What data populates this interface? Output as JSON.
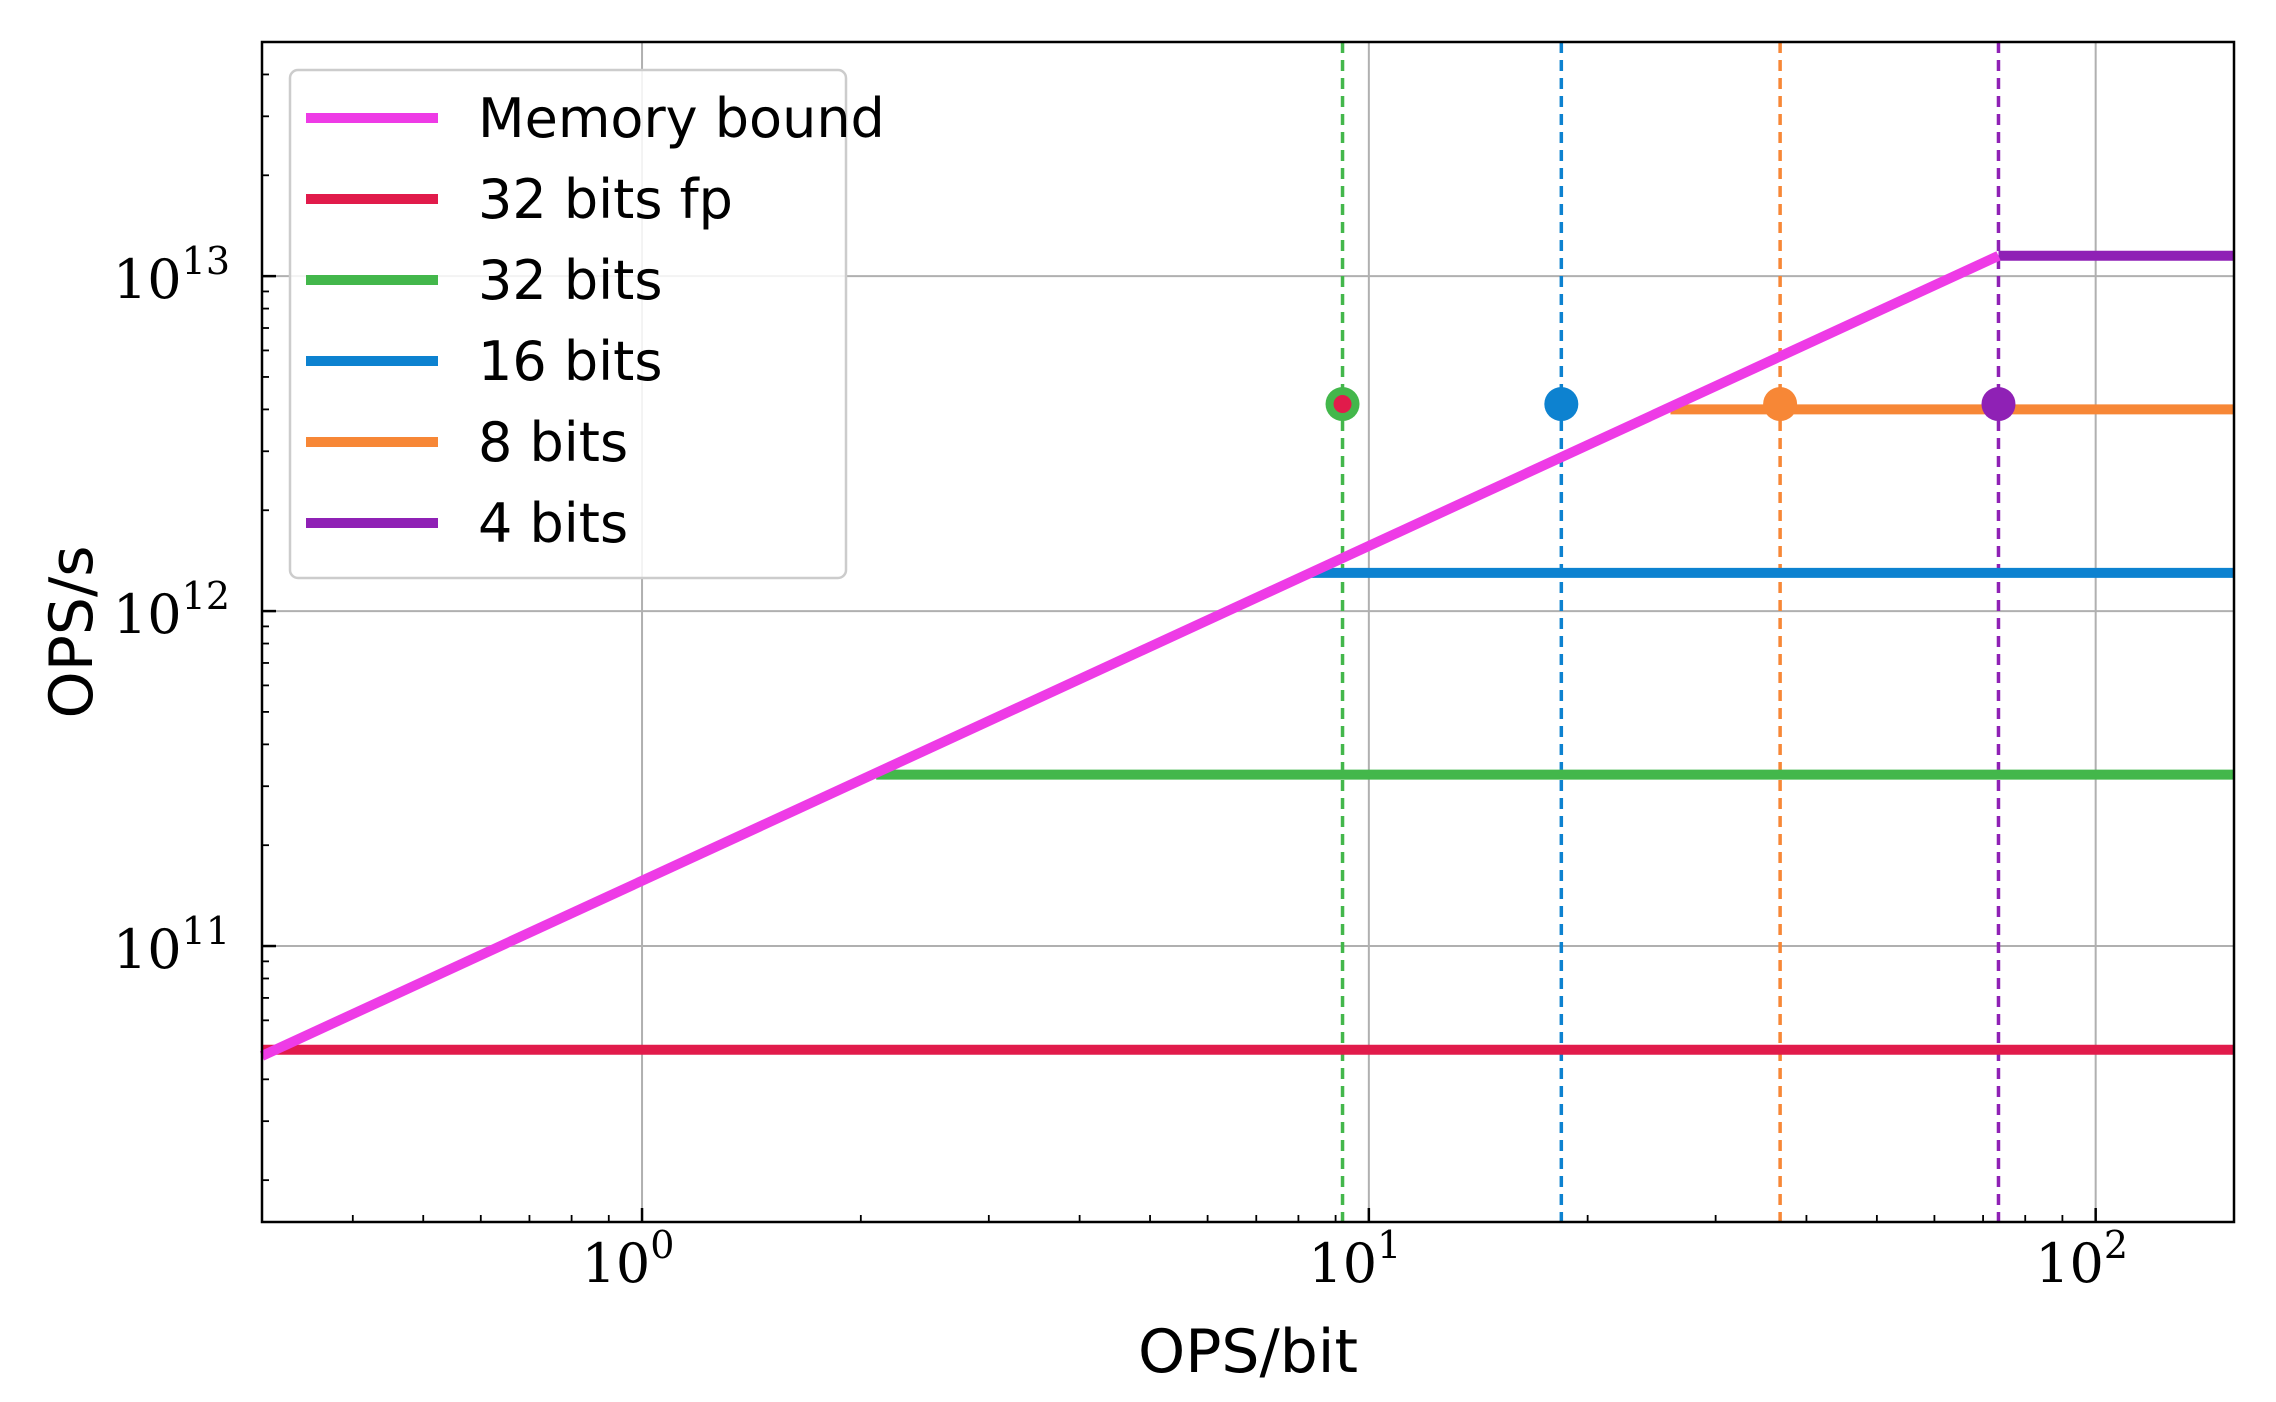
{
  "chart_data": {
    "type": "line",
    "title": "",
    "xlabel": "OPS/bit",
    "ylabel": "OPS/s",
    "xscale": "log",
    "yscale": "log",
    "xlim": [
      0.3,
      155
    ],
    "ylim": [
      15000000000.0,
      50000000000000.0
    ],
    "grid": true,
    "legend_position": "top-left",
    "x_ticks": [
      {
        "value": 1,
        "base": "10",
        "exp": "0"
      },
      {
        "value": 10,
        "base": "10",
        "exp": "1"
      },
      {
        "value": 100,
        "base": "10",
        "exp": "2"
      }
    ],
    "y_ticks": [
      {
        "value": 100000000000.0,
        "base": "10",
        "exp": "11"
      },
      {
        "value": 1000000000000.0,
        "base": "10",
        "exp": "12"
      },
      {
        "value": 10000000000000.0,
        "base": "10",
        "exp": "13"
      }
    ],
    "series": [
      {
        "name": "Memory bound",
        "color": "#ee3be6",
        "style": "solid",
        "x": [
          0.3,
          73.5
        ],
        "y": [
          47000000000.0,
          11500000000000.0
        ]
      },
      {
        "name": "32 bits fp",
        "color": "#e11b4b",
        "style": "solid",
        "x": [
          0.3,
          155
        ],
        "y": [
          49000000000.0,
          49000000000.0
        ]
      },
      {
        "name": "32 bits",
        "color": "#43b74b",
        "style": "solid",
        "x": [
          2.1,
          155
        ],
        "y": [
          325000000000.0,
          325000000000.0
        ]
      },
      {
        "name": "16 bits",
        "color": "#0d82d0",
        "style": "solid",
        "x": [
          8.3,
          155
        ],
        "y": [
          1300000000000.0,
          1300000000000.0
        ]
      },
      {
        "name": "8 bits",
        "color": "#f78736",
        "style": "solid",
        "x": [
          26,
          155
        ],
        "y": [
          4000000000000.0,
          4000000000000.0
        ]
      },
      {
        "name": "4 bits",
        "color": "#8f21b5",
        "style": "solid",
        "x": [
          73.5,
          155
        ],
        "y": [
          11500000000000.0,
          11500000000000.0
        ]
      }
    ],
    "vlines": [
      {
        "x": 9.2,
        "color": "#43b74b"
      },
      {
        "x": 18.4,
        "color": "#0d82d0"
      },
      {
        "x": 36.8,
        "color": "#f78736"
      },
      {
        "x": 73.5,
        "color": "#8f21b5"
      }
    ],
    "points": [
      {
        "x": 9.2,
        "y": 4150000000000.0,
        "color": "#43b74b",
        "inner_color": "#e11b4b"
      },
      {
        "x": 18.4,
        "y": 4150000000000.0,
        "color": "#0d82d0"
      },
      {
        "x": 36.8,
        "y": 4150000000000.0,
        "color": "#f78736"
      },
      {
        "x": 73.5,
        "y": 4150000000000.0,
        "color": "#8f21b5"
      }
    ]
  }
}
